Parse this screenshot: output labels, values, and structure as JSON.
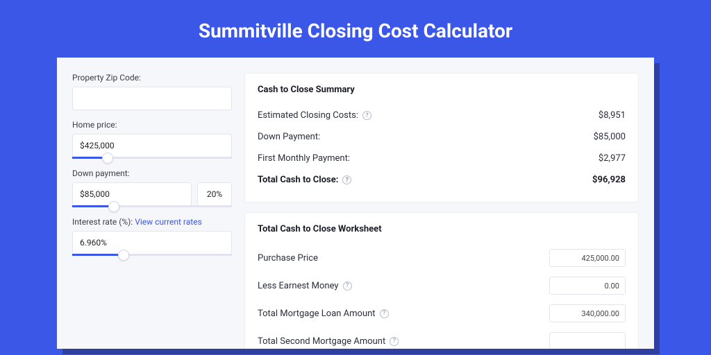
{
  "colors": {
    "page_bg": "#3a57e8",
    "card_bg": "#f6f7fb",
    "panel_bg": "#ffffff",
    "border": "#e3e5ee",
    "text": "#2b2e3b",
    "title_text": "#ffffff",
    "link": "#3a57e8",
    "slider_fill": "#3a57e8"
  },
  "title": "Summitville Closing Cost Calculator",
  "left": {
    "zip": {
      "label": "Property Zip Code:",
      "value": ""
    },
    "home_price": {
      "label": "Home price:",
      "value": "$425,000",
      "slider_pct": 22
    },
    "down_payment": {
      "label": "Down payment:",
      "value": "$85,000",
      "pct": "20%",
      "slider_pct": 26
    },
    "interest": {
      "label": "Interest rate (%):",
      "link_text": "View current rates",
      "value": "6.960%",
      "slider_pct": 32
    }
  },
  "summary": {
    "title": "Cash to Close Summary",
    "rows": [
      {
        "label": "Estimated Closing Costs:",
        "help": true,
        "value": "$8,951",
        "bold": false
      },
      {
        "label": "Down Payment:",
        "help": false,
        "value": "$85,000",
        "bold": false
      },
      {
        "label": "First Monthly Payment:",
        "help": false,
        "value": "$2,977",
        "bold": false
      },
      {
        "label": "Total Cash to Close:",
        "help": true,
        "value": "$96,928",
        "bold": true
      }
    ]
  },
  "worksheet": {
    "title": "Total Cash to Close Worksheet",
    "rows": [
      {
        "label": "Purchase Price",
        "help": false,
        "value": "425,000.00"
      },
      {
        "label": "Less Earnest Money",
        "help": true,
        "value": "0.00"
      },
      {
        "label": "Total Mortgage Loan Amount",
        "help": true,
        "value": "340,000.00"
      },
      {
        "label": "Total Second Mortgage Amount",
        "help": true,
        "value": ""
      }
    ]
  }
}
